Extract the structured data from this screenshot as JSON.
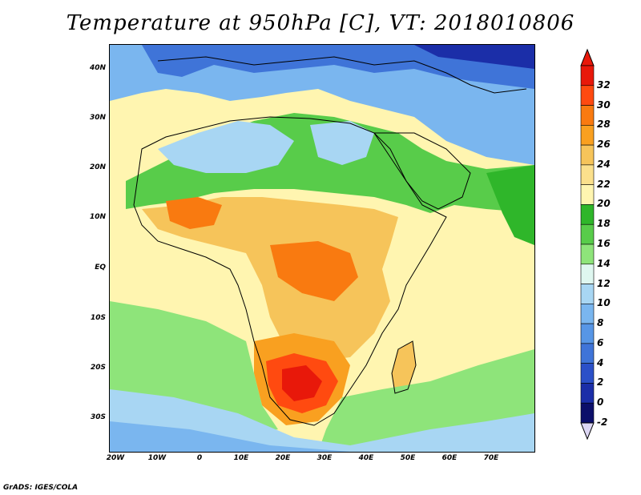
{
  "title": "Temperature at 950hPa [C], VT: 2018010806",
  "credit": "GrADS: IGES/COLA",
  "latitude_ticks": [
    "40N",
    "30N",
    "20N",
    "10N",
    "EQ",
    "10S",
    "20S",
    "30S"
  ],
  "longitude_ticks": [
    "20W",
    "10W",
    "0",
    "10E",
    "20E",
    "30E",
    "40E",
    "50E",
    "60E",
    "70E"
  ],
  "colorbar": {
    "labels": [
      "32",
      "30",
      "28",
      "26",
      "24",
      "22",
      "20",
      "18",
      "16",
      "14",
      "12",
      "10",
      "8",
      "6",
      "4",
      "2",
      "0",
      "-2"
    ],
    "colors": [
      "#e8180a",
      "#ff4a10",
      "#f97a10",
      "#f9a020",
      "#f6c45a",
      "#fbe08c",
      "#fff5b0",
      "#2fb62a",
      "#58cc4a",
      "#8ee47a",
      "#dff7f0",
      "#a8d6f3",
      "#7ab6ef",
      "#5796e6",
      "#3f74d8",
      "#2b50c8",
      "#1b2ea8",
      "#0c0f6a"
    ],
    "top_arrow_color": "#e8180a",
    "bottom_arrow_color": "#ddd7f4"
  },
  "palette": {
    "ocean": "#fff5b0",
    "sahara_green": "#58cc4a",
    "north_blue": "#7ab6ef",
    "europe_blue": "#3f74d8",
    "interior_warm": "#f6c45a",
    "hot_core": "#ff4a10",
    "south_ocean": "#8ee47a",
    "far_south_blue": "#a8d6f3"
  }
}
